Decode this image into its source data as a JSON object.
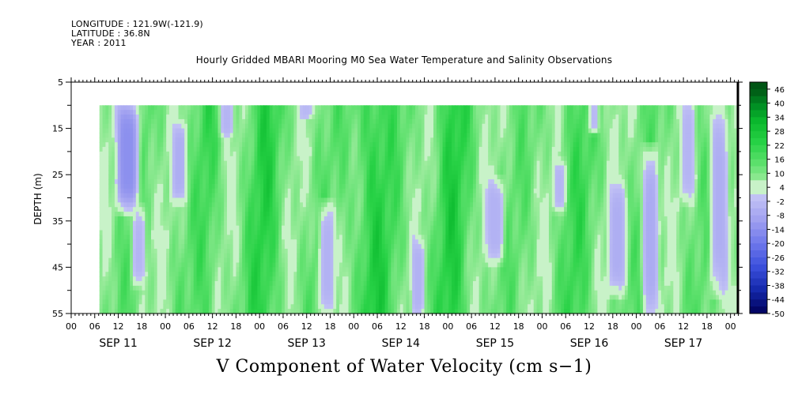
{
  "header": {
    "longitude": "LONGITUDE : 121.9W(-121.9)",
    "latitude": "LATITUDE : 36.8N",
    "year": "YEAR : 2011"
  },
  "chart_data": {
    "type": "heatmap",
    "title": "Hourly Gridded MBARI Mooring M0 Sea Water Temperature and Salinity Observations",
    "xlabel": "V Component of Water Velocity (cm s−1)",
    "ylabel": "DEPTH (m)",
    "ylim": [
      55,
      5
    ],
    "data_depth_range": [
      10,
      55
    ],
    "y_ticks": [
      "5",
      "15",
      "25",
      "35",
      "45",
      "55"
    ],
    "x_hour_ticks": [
      "00",
      "06",
      "12",
      "18",
      "00",
      "06",
      "12",
      "18",
      "00",
      "06",
      "12",
      "18",
      "00",
      "06",
      "12",
      "18",
      "00",
      "06",
      "12",
      "18",
      "00",
      "06",
      "12",
      "18",
      "00",
      "06",
      "12",
      "18",
      "00"
    ],
    "x_day_labels": [
      "SEP 11",
      "SEP 12",
      "SEP 13",
      "SEP 14",
      "SEP 15",
      "SEP 16",
      "SEP 17"
    ],
    "x_range_days": [
      0,
      7.07
    ],
    "data_start_day": 0.3,
    "colorbar_labels": [
      "46",
      "40",
      "34",
      "28",
      "22",
      "16",
      "10",
      "4",
      "-2",
      "-8",
      "-14",
      "-20",
      "-26",
      "-32",
      "-38",
      "-44",
      "-50"
    ],
    "colorbar_range": [
      -50,
      49
    ],
    "negative_patches": [
      {
        "t_center": 0.6,
        "t_width": 0.25,
        "d_top": 10,
        "d_bottom": 32,
        "value": -14
      },
      {
        "t_center": 0.72,
        "t_width": 0.15,
        "d_top": 33,
        "d_bottom": 48,
        "value": -4
      },
      {
        "t_center": 1.15,
        "t_width": 0.16,
        "d_top": 15,
        "d_bottom": 30,
        "value": -6
      },
      {
        "t_center": 1.65,
        "t_width": 0.15,
        "d_top": 10,
        "d_bottom": 16,
        "value": -4
      },
      {
        "t_center": 2.5,
        "t_width": 0.14,
        "d_top": 10,
        "d_bottom": 12,
        "value": -3
      },
      {
        "t_center": 2.72,
        "t_width": 0.18,
        "d_top": 32,
        "d_bottom": 55,
        "value": -5
      },
      {
        "t_center": 3.68,
        "t_width": 0.14,
        "d_top": 40,
        "d_bottom": 55,
        "value": -5
      },
      {
        "t_center": 4.5,
        "t_width": 0.2,
        "d_top": 27,
        "d_bottom": 43,
        "value": -5
      },
      {
        "t_center": 5.18,
        "t_width": 0.14,
        "d_top": 23,
        "d_bottom": 32,
        "value": -4
      },
      {
        "t_center": 5.55,
        "t_width": 0.12,
        "d_top": 10,
        "d_bottom": 15,
        "value": -3
      },
      {
        "t_center": 5.8,
        "t_width": 0.2,
        "d_top": 28,
        "d_bottom": 50,
        "value": -6
      },
      {
        "t_center": 6.15,
        "t_width": 0.18,
        "d_top": 20,
        "d_bottom": 55,
        "value": -7
      },
      {
        "t_center": 6.55,
        "t_width": 0.15,
        "d_top": 10,
        "d_bottom": 30,
        "value": -4
      },
      {
        "t_center": 6.88,
        "t_width": 0.2,
        "d_top": 10,
        "d_bottom": 50,
        "value": -6
      }
    ],
    "strong_positive_bands": [
      {
        "t_center": 2.05,
        "t_width": 0.3,
        "value": 18
      },
      {
        "t_center": 3.2,
        "t_width": 0.35,
        "value": 20
      },
      {
        "t_center": 4.05,
        "t_width": 0.3,
        "value": 19
      },
      {
        "t_center": 1.45,
        "t_width": 0.2,
        "value": 14
      },
      {
        "t_center": 5.35,
        "t_width": 0.3,
        "value": 14
      }
    ]
  }
}
